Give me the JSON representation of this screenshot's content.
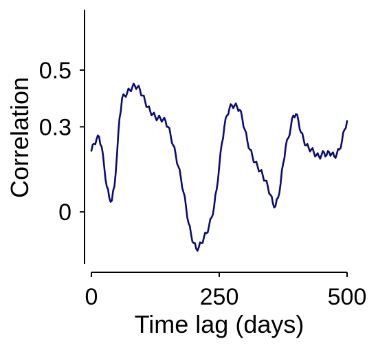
{
  "chart_data": {
    "type": "line",
    "title": "",
    "xlabel": "Time lag (days)",
    "ylabel": "Correlation",
    "xlim": [
      0,
      500
    ],
    "ylim": [
      -0.15,
      0.65
    ],
    "x_ticks": [
      0,
      250,
      500
    ],
    "x_tick_labels": [
      "0",
      "250",
      "500"
    ],
    "y_ticks": [
      0,
      0.3,
      0.5
    ],
    "y_tick_labels": [
      "0",
      "0.3",
      "0.5"
    ],
    "grid": false,
    "series": [
      {
        "color": "#0a0a78",
        "x": [
          0,
          5,
          10,
          15,
          20,
          25,
          30,
          35,
          40,
          45,
          50,
          55,
          60,
          65,
          70,
          75,
          80,
          85,
          90,
          95,
          100,
          105,
          110,
          115,
          120,
          125,
          130,
          135,
          140,
          145,
          150,
          155,
          160,
          165,
          170,
          175,
          180,
          185,
          190,
          195,
          200,
          205,
          210,
          215,
          220,
          225,
          230,
          235,
          240,
          245,
          250,
          255,
          260,
          265,
          270,
          275,
          280,
          285,
          290,
          295,
          300,
          305,
          310,
          315,
          320,
          325,
          330,
          335,
          340,
          345,
          350,
          355,
          360,
          365,
          370,
          375,
          380,
          385,
          390,
          395,
          400,
          405,
          410,
          415,
          420,
          425,
          430,
          435,
          440,
          445,
          450,
          455,
          460,
          465,
          470,
          475,
          480,
          485,
          490,
          495,
          500
        ],
        "values": [
          0.215,
          0.24,
          0.255,
          0.265,
          0.23,
          0.16,
          0.09,
          0.05,
          0.04,
          0.09,
          0.2,
          0.33,
          0.4,
          0.41,
          0.42,
          0.43,
          0.44,
          0.445,
          0.44,
          0.43,
          0.41,
          0.39,
          0.37,
          0.355,
          0.345,
          0.335,
          0.33,
          0.33,
          0.325,
          0.32,
          0.3,
          0.27,
          0.235,
          0.2,
          0.16,
          0.12,
          0.07,
          0.02,
          -0.04,
          -0.08,
          -0.11,
          -0.13,
          -0.125,
          -0.11,
          -0.09,
          -0.075,
          -0.05,
          -0.02,
          0.02,
          0.08,
          0.16,
          0.24,
          0.3,
          0.34,
          0.365,
          0.375,
          0.375,
          0.37,
          0.36,
          0.33,
          0.29,
          0.25,
          0.22,
          0.195,
          0.175,
          0.16,
          0.145,
          0.13,
          0.11,
          0.09,
          0.06,
          0.03,
          0.02,
          0.05,
          0.1,
          0.17,
          0.23,
          0.26,
          0.3,
          0.34,
          0.345,
          0.32,
          0.28,
          0.255,
          0.235,
          0.225,
          0.22,
          0.21,
          0.2,
          0.195,
          0.2,
          0.21,
          0.2,
          0.21,
          0.205,
          0.195,
          0.205,
          0.22,
          0.25,
          0.29,
          0.32
        ]
      }
    ]
  }
}
